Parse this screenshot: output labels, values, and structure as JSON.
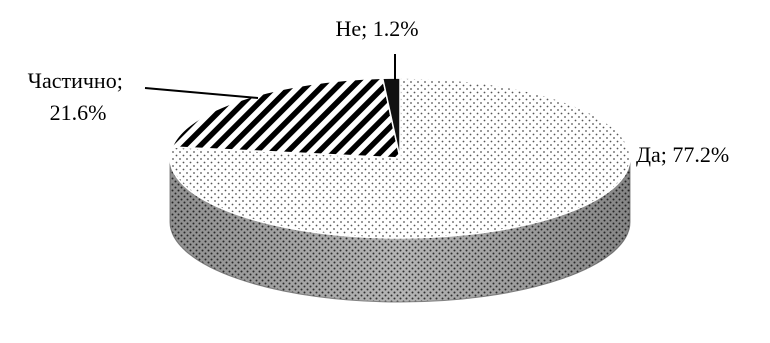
{
  "chart_data": {
    "type": "pie",
    "style": "3d",
    "title": "",
    "legend": "none",
    "slices": [
      {
        "name": "Да",
        "value": 77.2,
        "label": "Да; 77.2%",
        "pattern": "dots"
      },
      {
        "name": "Частично",
        "value": 21.6,
        "label_lines": [
          "Частично;",
          "21.6%"
        ],
        "pattern": "diagonal-stripes"
      },
      {
        "name": "Не",
        "value": 1.2,
        "label": "Не; 1.2%",
        "pattern": "solid-dark"
      }
    ]
  }
}
